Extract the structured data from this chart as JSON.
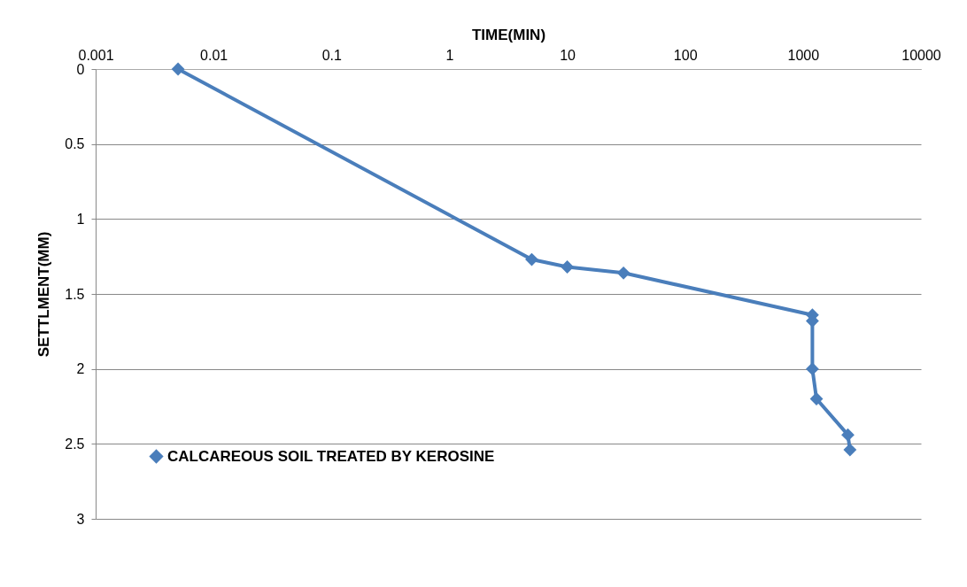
{
  "chart_data": {
    "type": "line",
    "xlabel": "TIME(MIN)",
    "ylabel": "SETTLMENT(MM)",
    "x": [
      0.005,
      5,
      10,
      30,
      1200,
      1200,
      1200,
      1300,
      2400,
      2500
    ],
    "series": [
      {
        "name": "CALCAREOUS SOIL TREATED BY KEROSINE",
        "color": "#4a7ebb",
        "values": [
          0,
          1.27,
          1.32,
          1.36,
          1.64,
          1.68,
          2.0,
          2.2,
          2.44,
          2.54
        ]
      }
    ],
    "log": "x",
    "xlim": [
      0.001,
      10000
    ],
    "xticks": [
      0.001,
      0.01,
      0.1,
      1,
      10,
      100,
      1000,
      10000
    ],
    "ylim": [
      3,
      0
    ],
    "yticks": [
      0,
      0.5,
      1,
      1.5,
      2,
      2.5,
      3
    ],
    "grid": "y",
    "legend": "bottom left",
    "marker": "diamond",
    "line_style": "solid"
  }
}
